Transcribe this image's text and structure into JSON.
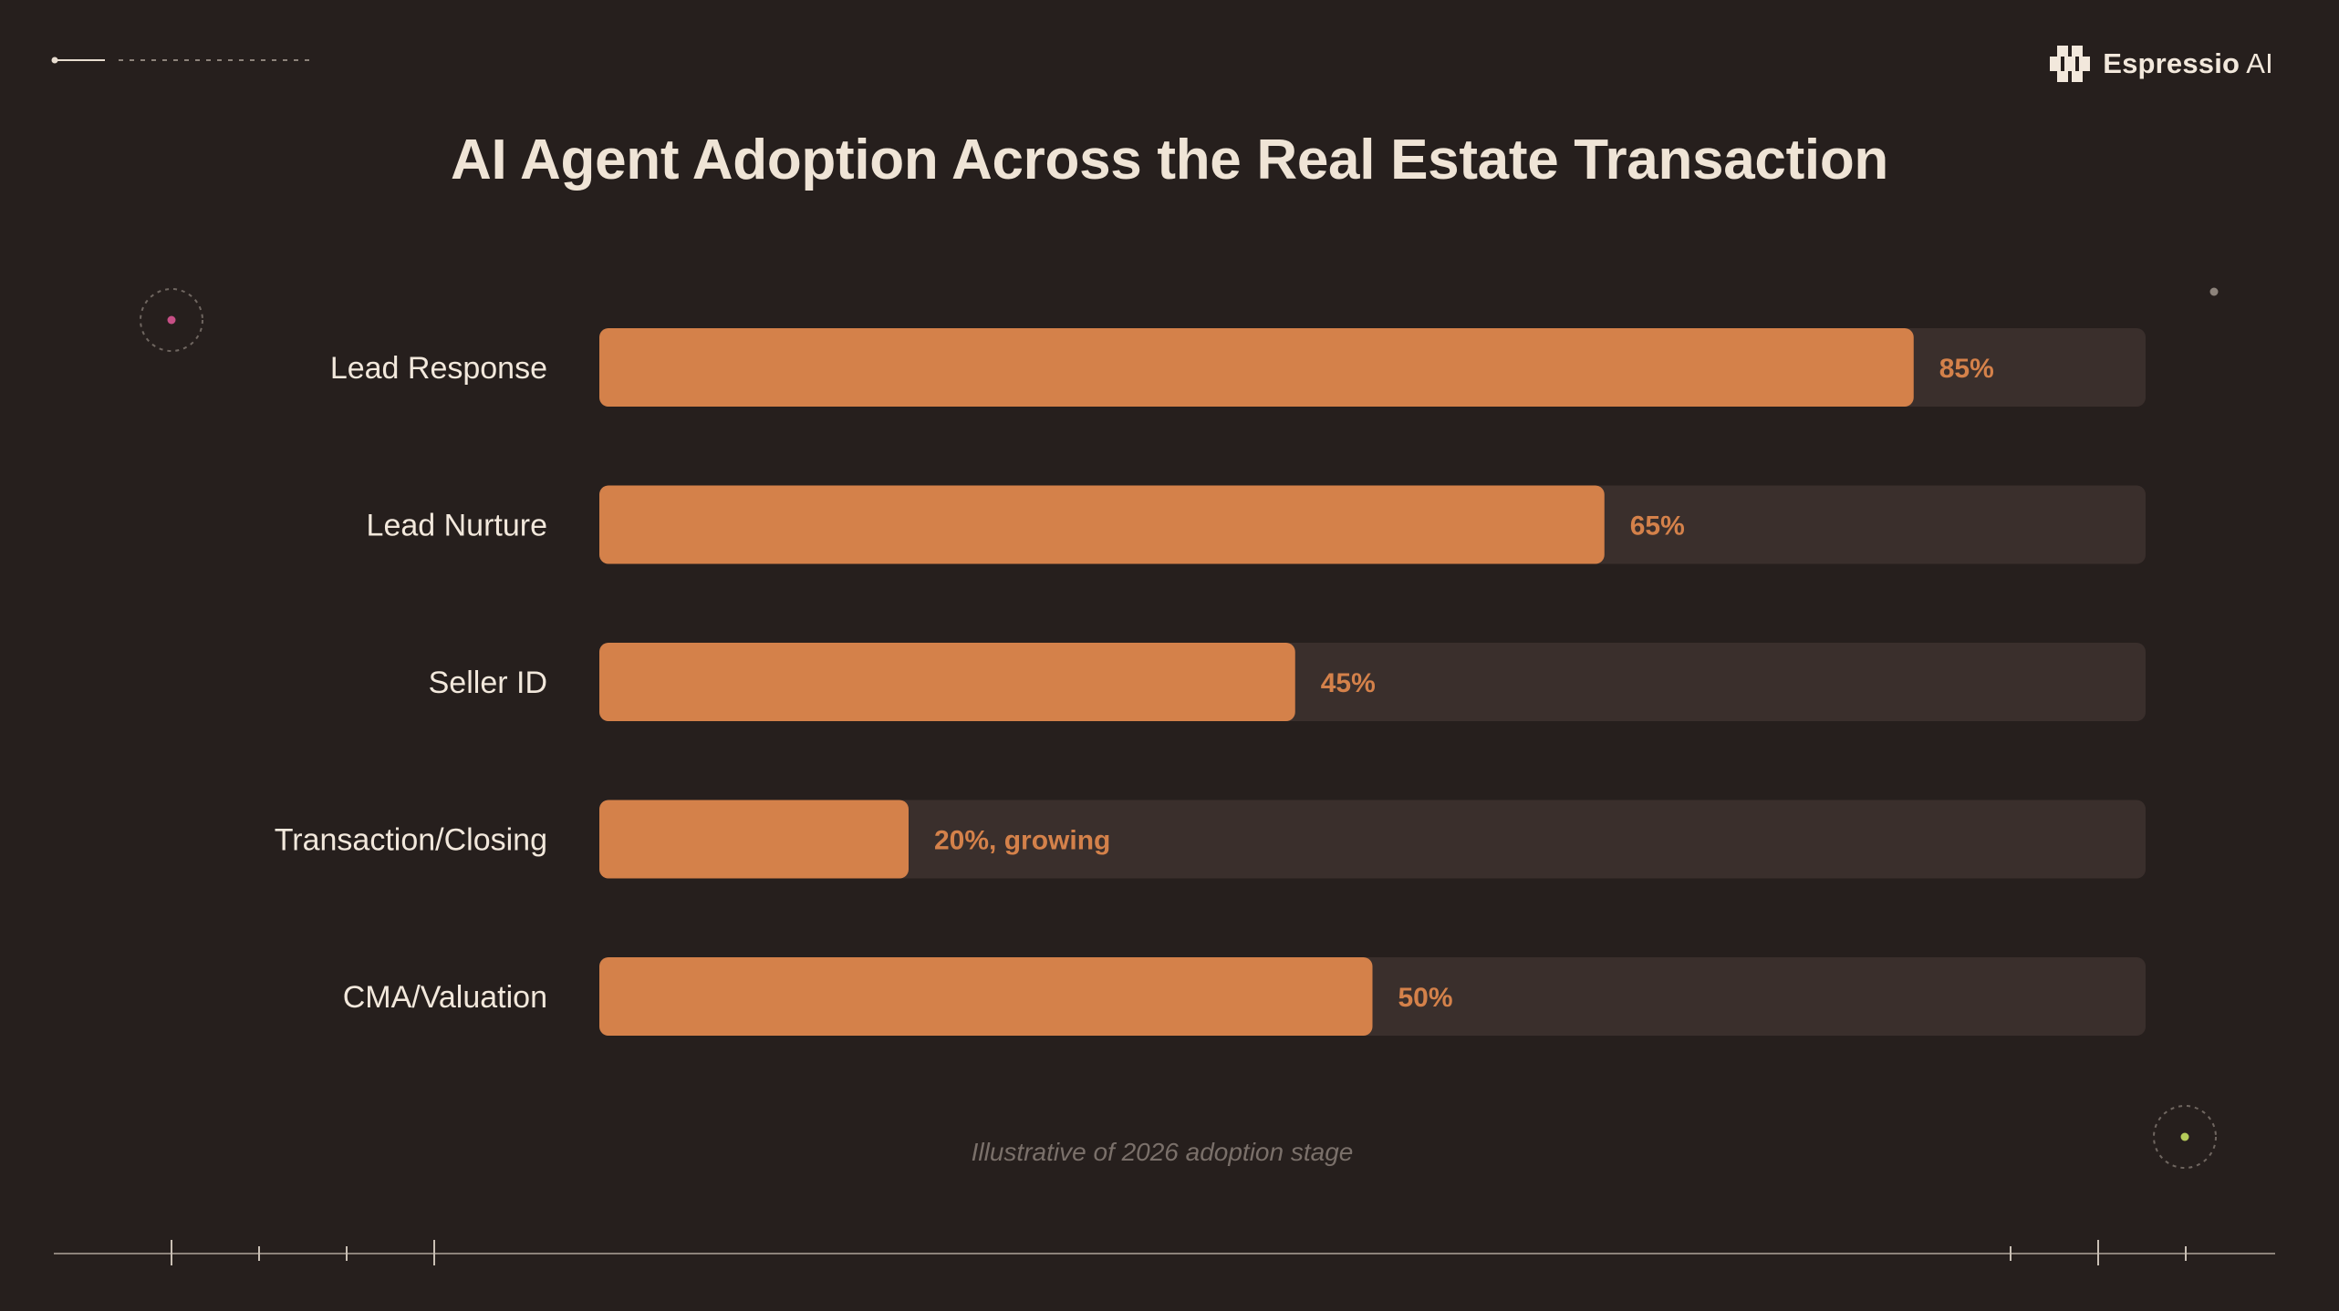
{
  "title": "AI Agent Adoption Across the Real Estate Transaction",
  "brand": {
    "name_bold": "Espressio",
    "name_regular": " AI",
    "logo_icon": "pixel-flower-icon"
  },
  "footnote": "Illustrative of 2026 adoption stage",
  "colors": {
    "background": "#261f1d",
    "bar_fill": "#d4814a",
    "bar_track": "#3a2f2c",
    "text": "#f2e8dc"
  },
  "chart_data": {
    "type": "bar",
    "orientation": "horizontal",
    "title": "AI Agent Adoption Across the Real Estate Transaction",
    "categories": [
      "Lead Response",
      "Lead Nurture",
      "Seller ID",
      "Transaction/Closing",
      "CMA/Valuation"
    ],
    "values": [
      85,
      65,
      45,
      20,
      50
    ],
    "value_labels": [
      "85%",
      "65%",
      "45%",
      "20%, growing",
      "50%"
    ],
    "xlim": [
      0,
      100
    ],
    "grid": false
  }
}
